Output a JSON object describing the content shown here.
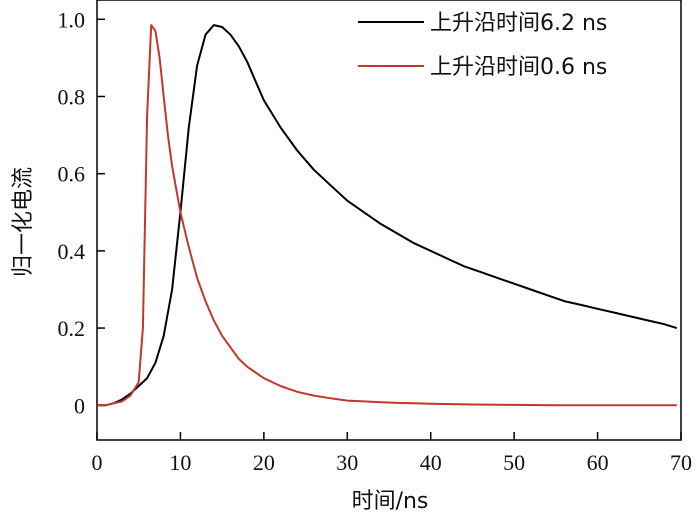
{
  "chart_data": {
    "type": "line",
    "title": "",
    "xlabel": "时间/ns",
    "ylabel": "归一化电流",
    "xlim": [
      0,
      70
    ],
    "ylim": [
      -0.09,
      1.05
    ],
    "x_ticks": [
      0,
      10,
      20,
      30,
      40,
      50,
      60,
      70
    ],
    "y_ticks": [
      0,
      0.2,
      0.4,
      0.6,
      0.8,
      1.0
    ],
    "x_tick_labels": [
      "0",
      "10",
      "20",
      "30",
      "40",
      "50",
      "60",
      "70"
    ],
    "y_tick_labels": [
      "0",
      "0.2",
      "0.4",
      "0.6",
      "0.8",
      "1.0"
    ],
    "grid": false,
    "legend_position": "top-right",
    "series": [
      {
        "name": "上升沿时间6.2 ns",
        "color": "#000000",
        "x": [
          0,
          1,
          2,
          3,
          4,
          5,
          6,
          7,
          8,
          9,
          10,
          11,
          12,
          13,
          14,
          15,
          16,
          17,
          18,
          19,
          20,
          22,
          24,
          26,
          28,
          30,
          32,
          34,
          36,
          38,
          40,
          42,
          44,
          46,
          48,
          50,
          52,
          54,
          56,
          58,
          60,
          62,
          64,
          66,
          68,
          69.5
        ],
        "y": [
          0.0,
          0.0,
          0.005,
          0.015,
          0.03,
          0.05,
          0.07,
          0.11,
          0.18,
          0.3,
          0.5,
          0.72,
          0.88,
          0.96,
          0.985,
          0.98,
          0.96,
          0.93,
          0.89,
          0.84,
          0.79,
          0.72,
          0.66,
          0.61,
          0.57,
          0.53,
          0.5,
          0.47,
          0.445,
          0.42,
          0.4,
          0.38,
          0.36,
          0.345,
          0.33,
          0.315,
          0.3,
          0.285,
          0.27,
          0.26,
          0.25,
          0.24,
          0.23,
          0.22,
          0.21,
          0.2
        ]
      },
      {
        "name": "上升沿时间0.6 ns",
        "color": "#c0392b",
        "x": [
          0,
          1,
          2,
          3,
          4,
          5,
          5.5,
          6,
          6.5,
          7,
          7.5,
          8,
          8.5,
          9,
          10,
          11,
          12,
          13,
          14,
          15,
          16,
          17,
          18,
          19,
          20,
          22,
          24,
          26,
          28,
          30,
          32,
          34,
          36,
          38,
          40,
          45,
          50,
          55,
          60,
          65,
          69.5
        ],
        "y": [
          0.0,
          0.0,
          0.005,
          0.01,
          0.025,
          0.06,
          0.2,
          0.75,
          0.985,
          0.97,
          0.9,
          0.8,
          0.7,
          0.62,
          0.5,
          0.41,
          0.33,
          0.27,
          0.22,
          0.18,
          0.15,
          0.12,
          0.1,
          0.085,
          0.07,
          0.05,
          0.035,
          0.025,
          0.018,
          0.012,
          0.01,
          0.008,
          0.006,
          0.005,
          0.004,
          0.002,
          0.001,
          0.0,
          0.0,
          0.0,
          0.0
        ]
      }
    ]
  }
}
